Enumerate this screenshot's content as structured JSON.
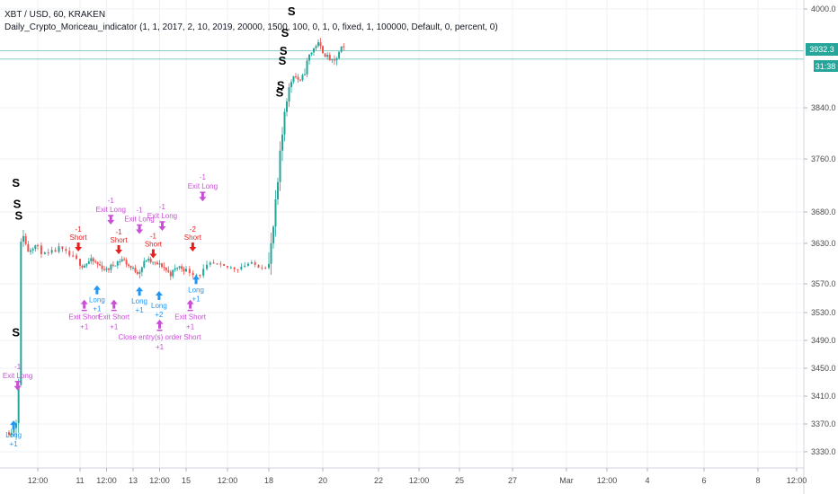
{
  "legend": {
    "symbol": "XBT / USD, 60, KRAKEN",
    "study": "Daily_Crypto_Moriceau_indicator (1, 1, 2017, 2, 10, 2019, 20000, 1500, 100, 0, 1, 0, fixed, 1, 100000, Default, 0, percent, 0)"
  },
  "price_tags": {
    "last_price": "3932.3",
    "countdown": "31:38"
  },
  "colors": {
    "up": "#26a69a",
    "down": "#ef5350",
    "long": "#2196f3",
    "short": "#e91e1e",
    "exit": "#c94fd6",
    "grid": "#eef0f3",
    "axis_text": "#4a4a4a",
    "price_line": "#26a69a"
  },
  "chart_data": {
    "type": "candlestick",
    "title": "XBT / USD, 60, KRAKEN",
    "ylim": [
      3300,
      4020
    ],
    "yticks": [
      3330,
      3370,
      3410,
      3450,
      3490,
      3530,
      3570,
      3630,
      3680,
      3760,
      3840,
      4000
    ],
    "ytick_labels": [
      "3330.0",
      "3370.0",
      "3410.0",
      "3450.0",
      "3490.0",
      "3530.0",
      "3570.0",
      "3630.0",
      "3680.0",
      "3760.0",
      "3840.0",
      "4000.0"
    ],
    "xtick_labels": [
      "12:00",
      "11",
      "12:00",
      "13",
      "12:00",
      "15",
      "12:00",
      "18",
      "20",
      "22",
      "12:00",
      "25",
      "27",
      "Mar",
      "12:00",
      "4",
      "6",
      "8",
      "12:00"
    ],
    "xtick_index": [
      0.5,
      1,
      1.5,
      2,
      2.5,
      3,
      3.5,
      4,
      5,
      6,
      6.5,
      7,
      8,
      9,
      9.5,
      10,
      11,
      12,
      12.5
    ],
    "grid": true,
    "close_path": [
      [
        0.0,
        3358
      ],
      [
        0.1,
        3365
      ],
      [
        0.16,
        3395
      ],
      [
        0.18,
        3520
      ],
      [
        0.2,
        3600
      ],
      [
        0.22,
        3665
      ],
      [
        0.26,
        3640
      ],
      [
        0.32,
        3618
      ],
      [
        0.45,
        3628
      ],
      [
        0.6,
        3612
      ],
      [
        0.75,
        3622
      ],
      [
        0.9,
        3610
      ],
      [
        1.05,
        3596
      ],
      [
        1.2,
        3605
      ],
      [
        1.35,
        3598
      ],
      [
        1.5,
        3590
      ],
      [
        1.65,
        3600
      ],
      [
        1.8,
        3607
      ],
      [
        1.95,
        3594
      ],
      [
        2.1,
        3587
      ],
      [
        2.25,
        3606
      ],
      [
        2.4,
        3600
      ],
      [
        2.55,
        3597
      ],
      [
        2.7,
        3584
      ],
      [
        2.85,
        3596
      ],
      [
        3.0,
        3590
      ],
      [
        3.15,
        3583
      ],
      [
        3.3,
        3600
      ],
      [
        3.45,
        3595
      ],
      [
        3.6,
        3593
      ],
      [
        3.75,
        3600
      ],
      [
        3.9,
        3596
      ],
      [
        4.0,
        3597
      ],
      [
        4.05,
        3630
      ],
      [
        4.15,
        3705
      ],
      [
        4.3,
        3845
      ],
      [
        4.45,
        3895
      ],
      [
        4.6,
        3880
      ],
      [
        4.75,
        3925
      ],
      [
        4.9,
        3945
      ],
      [
        5.05,
        3925
      ],
      [
        5.2,
        3912
      ],
      [
        5.35,
        3940
      ],
      [
        5.4,
        3932
      ]
    ],
    "price_levels": [
      {
        "label": "3932.3",
        "value": 3932.3
      },
      {
        "value": 3919
      }
    ],
    "signals": [
      {
        "type": "long",
        "index": 0.08,
        "value": 3375,
        "text": "Long",
        "qty": "+1"
      },
      {
        "type": "exit_long",
        "index": 0.15,
        "value": 3418,
        "text": "Exit Long",
        "qty": "-1"
      },
      {
        "type": "exit_short",
        "index": 1.08,
        "value": 3548,
        "text": "Exit Short",
        "qty": "+1"
      },
      {
        "type": "short",
        "index": 0.98,
        "value": 3618,
        "text": "Short",
        "qty": "-1"
      },
      {
        "type": "long",
        "index": 1.32,
        "value": 3568,
        "text": "Long",
        "qty": "+1"
      },
      {
        "type": "exit_long",
        "index": 1.58,
        "value": 3660,
        "text": "Exit Long",
        "qty": "-1"
      },
      {
        "type": "short",
        "index": 1.73,
        "value": 3614,
        "text": "Short",
        "qty": "-1"
      },
      {
        "type": "exit_short",
        "index": 1.64,
        "value": 3548,
        "text": "Exit Short",
        "qty": "+1"
      },
      {
        "type": "long",
        "index": 2.12,
        "value": 3566,
        "text": "Long",
        "qty": "+1"
      },
      {
        "type": "exit_long",
        "index": 2.12,
        "value": 3645,
        "text": "Exit Long",
        "qty": "-1"
      },
      {
        "type": "short",
        "index": 2.38,
        "value": 3608,
        "text": "Short",
        "qty": "-1"
      },
      {
        "type": "exit_long",
        "index": 2.55,
        "value": 3650,
        "text": "Exit Long",
        "qty": "-1"
      },
      {
        "type": "long",
        "index": 2.49,
        "value": 3560,
        "text": "Long",
        "qty": "+2"
      },
      {
        "type": "exit_short",
        "index": 2.5,
        "value": 3520,
        "text": "Close entry(s) order Short",
        "qty": "+1"
      },
      {
        "type": "short",
        "index": 3.08,
        "value": 3618,
        "text": "Short",
        "qty": "-2"
      },
      {
        "type": "long",
        "index": 3.12,
        "value": 3583,
        "text": "Long",
        "qty": "+1"
      },
      {
        "type": "exit_short",
        "index": 3.05,
        "value": 3548,
        "text": "Exit Short",
        "qty": "+1"
      },
      {
        "type": "exit_long",
        "index": 3.2,
        "value": 3696,
        "text": "Exit Long",
        "qty": "-1"
      }
    ],
    "s_markers": [
      {
        "index": 0.12,
        "value": 3718
      },
      {
        "index": 0.14,
        "value": 3686
      },
      {
        "index": 0.17,
        "value": 3668
      },
      {
        "index": 0.12,
        "value": 3496
      },
      {
        "index": 4.2,
        "value": 3858
      },
      {
        "index": 4.22,
        "value": 3870
      },
      {
        "index": 4.25,
        "value": 3910
      },
      {
        "index": 4.27,
        "value": 3926
      },
      {
        "index": 4.3,
        "value": 3955
      },
      {
        "index": 4.42,
        "value": 3990
      }
    ]
  }
}
